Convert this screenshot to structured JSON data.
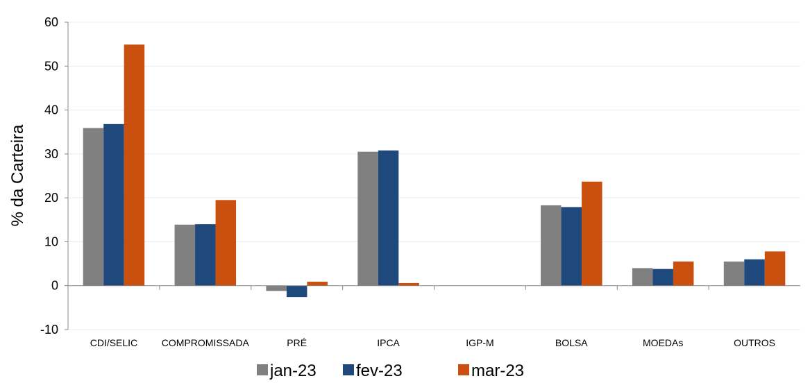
{
  "chart_data": {
    "type": "bar",
    "ylabel": "% da Carteira",
    "ylim": [
      -10,
      60
    ],
    "yticks": [
      -10,
      0,
      10,
      20,
      30,
      40,
      50,
      60
    ],
    "grid": true,
    "legend_position": "bottom",
    "categories": [
      "CDI/SELIC",
      "COMPROMISSADA",
      "PRÉ",
      "IPCA",
      "IGP-M",
      "BOLSA",
      "MOEDAs",
      "OUTROS"
    ],
    "series": [
      {
        "name": "jan-23",
        "color": "#808080",
        "values": [
          35.9,
          13.9,
          -1.2,
          30.5,
          0,
          18.3,
          4.0,
          5.5
        ]
      },
      {
        "name": "fev-23",
        "color": "#1F497D",
        "values": [
          36.8,
          14.0,
          -2.6,
          30.8,
          0,
          17.9,
          3.8,
          6.0
        ]
      },
      {
        "name": "mar-23",
        "color": "#C9500E",
        "values": [
          54.9,
          19.5,
          0.9,
          0.6,
          0,
          23.7,
          5.5,
          7.8
        ]
      }
    ]
  }
}
